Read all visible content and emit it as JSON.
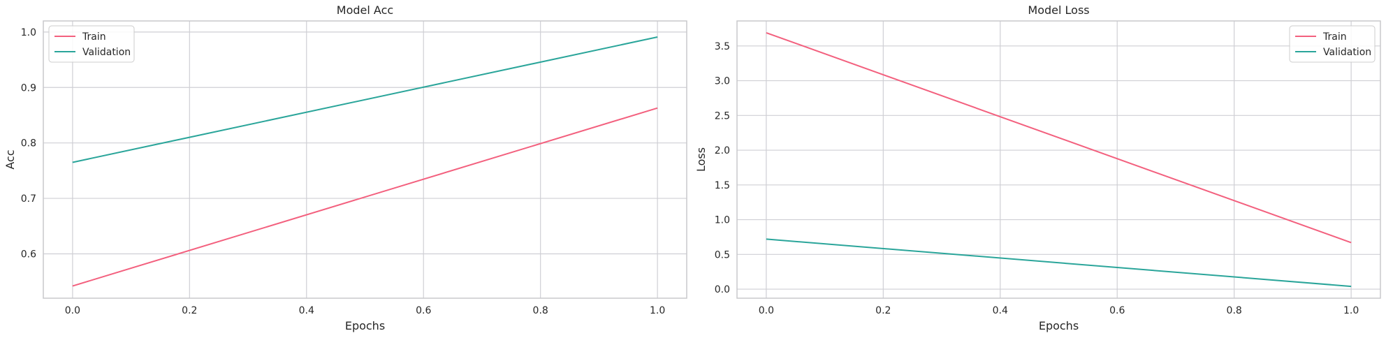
{
  "colors": {
    "train": "#f3607e",
    "validation": "#2aa59a",
    "grid": "#cfcfd4",
    "spine": "#c8c8cc"
  },
  "chart_data": [
    {
      "type": "line",
      "title": "Model Acc",
      "xlabel": "Epochs",
      "ylabel": "Acc",
      "x": [
        0.0,
        1.0
      ],
      "xlim": [
        -0.05,
        1.05
      ],
      "ylim": [
        0.52,
        1.02
      ],
      "xticks": [
        "0.0",
        "0.2",
        "0.4",
        "0.6",
        "0.8",
        "1.0"
      ],
      "yticks": [
        "0.6",
        "0.7",
        "0.8",
        "0.9",
        "1.0"
      ],
      "grid": true,
      "legend": "upper-left",
      "series": [
        {
          "name": "Train",
          "color": "#f3607e",
          "values": [
            0.542,
            0.863
          ]
        },
        {
          "name": "Validation",
          "color": "#2aa59a",
          "values": [
            0.765,
            0.991
          ]
        }
      ]
    },
    {
      "type": "line",
      "title": "Model Loss",
      "xlabel": "Epochs",
      "ylabel": "Loss",
      "x": [
        0.0,
        1.0
      ],
      "xlim": [
        -0.05,
        1.05
      ],
      "ylim": [
        -0.13,
        3.86
      ],
      "xticks": [
        "0.0",
        "0.2",
        "0.4",
        "0.6",
        "0.8",
        "1.0"
      ],
      "yticks": [
        "0.0",
        "0.5",
        "1.0",
        "1.5",
        "2.0",
        "2.5",
        "3.0",
        "3.5"
      ],
      "grid": true,
      "legend": "upper-right",
      "series": [
        {
          "name": "Train",
          "color": "#f3607e",
          "values": [
            3.69,
            0.67
          ]
        },
        {
          "name": "Validation",
          "color": "#2aa59a",
          "values": [
            0.72,
            0.04
          ]
        }
      ]
    }
  ]
}
